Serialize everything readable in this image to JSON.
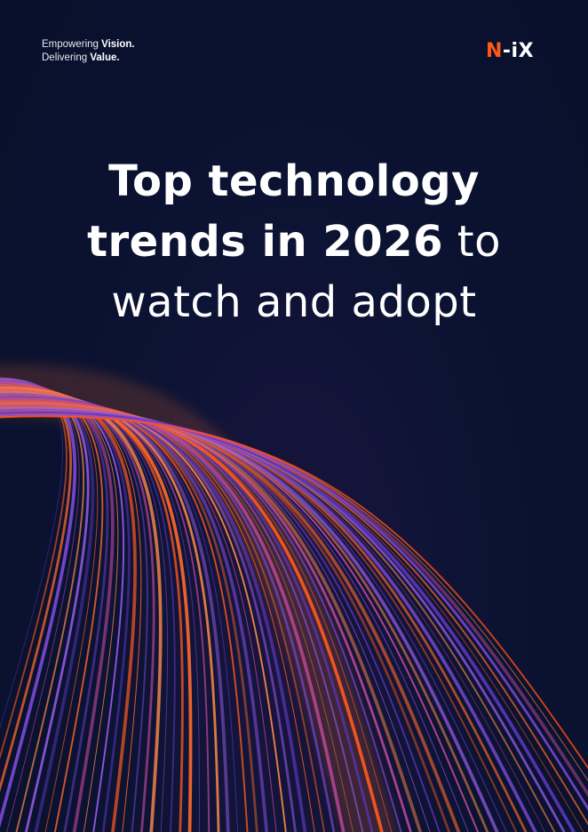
{
  "tagline": {
    "line1_regular": "Empowering ",
    "line1_bold": "Vision.",
    "line2_regular": "Delivering ",
    "line2_bold": "Value."
  },
  "logo": {
    "letter": "N",
    "rest": "-iX",
    "accent_color": "#ff5a14"
  },
  "title": {
    "line1": "Top technology",
    "line2_bold": "trends in 2026",
    "line2_light": " to",
    "line3": "watch and adopt"
  },
  "colors": {
    "background": "#0a1230",
    "streak_orange": "#ff5a1e",
    "streak_purple": "#7b4bd6",
    "streak_pink": "#ff8fb0"
  }
}
